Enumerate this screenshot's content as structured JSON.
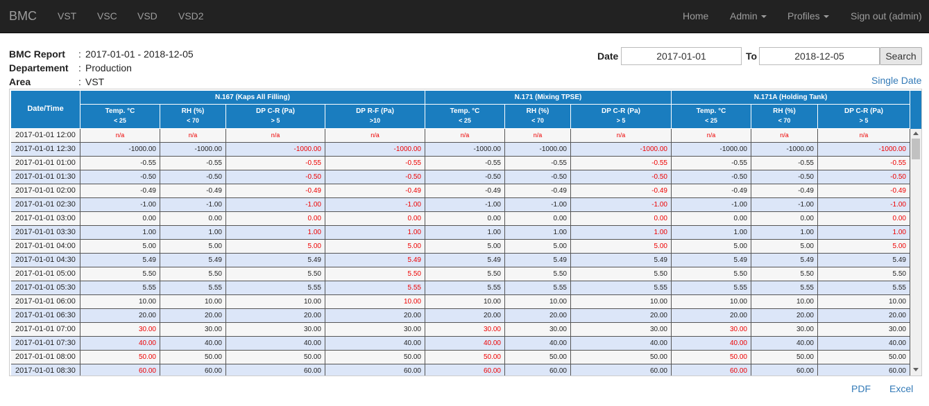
{
  "navbar": {
    "brand": "BMC",
    "left_items": [
      "VST",
      "VSC",
      "VSD",
      "VSD2"
    ],
    "right_items": [
      {
        "label": "Home"
      },
      {
        "label": "Admin"
      },
      {
        "label": "Profiles"
      },
      {
        "label": "Sign out (admin)"
      }
    ]
  },
  "report": {
    "title_label": "BMC Report",
    "title_value": "2017-01-01 - 2018-12-05",
    "dept_label": "Departement",
    "dept_value": "Production",
    "area_label": "Area",
    "area_value": "VST",
    "colon": ":"
  },
  "filter": {
    "date_label": "Date",
    "date_value": "2017-01-01",
    "to_label": "To",
    "to_value": "2018-12-05",
    "search_label": "Search",
    "single_date_label": "Single Date"
  },
  "table": {
    "datetime_header": "Date/Time",
    "groups": [
      {
        "label": "N.167 (Kaps All Filling)",
        "columns": [
          {
            "label": "Temp. °C",
            "limit": "< 25"
          },
          {
            "label": "RH (%)",
            "limit": "< 70"
          },
          {
            "label": "DP C-R (Pa)",
            "limit": "> 5"
          },
          {
            "label": "DP R-F (Pa)",
            "limit": ">10"
          }
        ]
      },
      {
        "label": "N.171 (Mixing TPSE)",
        "columns": [
          {
            "label": "Temp. °C",
            "limit": "< 25"
          },
          {
            "label": "RH (%)",
            "limit": "< 70"
          },
          {
            "label": "DP C-R (Pa)",
            "limit": "> 5"
          }
        ]
      },
      {
        "label": "N.171A (Holding Tank)",
        "columns": [
          {
            "label": "Temp. °C",
            "limit": "< 25"
          },
          {
            "label": "RH (%)",
            "limit": "< 70"
          },
          {
            "label": "DP C-R (Pa)",
            "limit": "> 5"
          }
        ]
      }
    ],
    "rows": [
      {
        "dt": "2017-01-01 12:00",
        "v": [
          "n/a",
          "n/a",
          "n/a",
          "n/a",
          "n/a",
          "n/a",
          "n/a",
          "n/a",
          "n/a",
          "n/a"
        ],
        "red": [
          1,
          1,
          1,
          1,
          1,
          1,
          1,
          1,
          1,
          1
        ]
      },
      {
        "dt": "2017-01-01 12:30",
        "v": [
          "-1000.00",
          "-1000.00",
          "-1000.00",
          "-1000.00",
          "-1000.00",
          "-1000.00",
          "-1000.00",
          "-1000.00",
          "-1000.00",
          "-1000.00"
        ],
        "red": [
          0,
          0,
          1,
          1,
          0,
          0,
          1,
          0,
          0,
          1
        ]
      },
      {
        "dt": "2017-01-01 01:00",
        "v": [
          "-0.55",
          "-0.55",
          "-0.55",
          "-0.55",
          "-0.55",
          "-0.55",
          "-0.55",
          "-0.55",
          "-0.55",
          "-0.55"
        ],
        "red": [
          0,
          0,
          1,
          1,
          0,
          0,
          1,
          0,
          0,
          1
        ]
      },
      {
        "dt": "2017-01-01 01:30",
        "v": [
          "-0.50",
          "-0.50",
          "-0.50",
          "-0.50",
          "-0.50",
          "-0.50",
          "-0.50",
          "-0.50",
          "-0.50",
          "-0.50"
        ],
        "red": [
          0,
          0,
          1,
          1,
          0,
          0,
          1,
          0,
          0,
          1
        ]
      },
      {
        "dt": "2017-01-01 02:00",
        "v": [
          "-0.49",
          "-0.49",
          "-0.49",
          "-0.49",
          "-0.49",
          "-0.49",
          "-0.49",
          "-0.49",
          "-0.49",
          "-0.49"
        ],
        "red": [
          0,
          0,
          1,
          1,
          0,
          0,
          1,
          0,
          0,
          1
        ]
      },
      {
        "dt": "2017-01-01 02:30",
        "v": [
          "-1.00",
          "-1.00",
          "-1.00",
          "-1.00",
          "-1.00",
          "-1.00",
          "-1.00",
          "-1.00",
          "-1.00",
          "-1.00"
        ],
        "red": [
          0,
          0,
          1,
          1,
          0,
          0,
          1,
          0,
          0,
          1
        ]
      },
      {
        "dt": "2017-01-01 03:00",
        "v": [
          "0.00",
          "0.00",
          "0.00",
          "0.00",
          "0.00",
          "0.00",
          "0.00",
          "0.00",
          "0.00",
          "0.00"
        ],
        "red": [
          0,
          0,
          1,
          1,
          0,
          0,
          1,
          0,
          0,
          1
        ]
      },
      {
        "dt": "2017-01-01 03:30",
        "v": [
          "1.00",
          "1.00",
          "1.00",
          "1.00",
          "1.00",
          "1.00",
          "1.00",
          "1.00",
          "1.00",
          "1.00"
        ],
        "red": [
          0,
          0,
          1,
          1,
          0,
          0,
          1,
          0,
          0,
          1
        ]
      },
      {
        "dt": "2017-01-01 04:00",
        "v": [
          "5.00",
          "5.00",
          "5.00",
          "5.00",
          "5.00",
          "5.00",
          "5.00",
          "5.00",
          "5.00",
          "5.00"
        ],
        "red": [
          0,
          0,
          1,
          1,
          0,
          0,
          1,
          0,
          0,
          1
        ]
      },
      {
        "dt": "2017-01-01 04:30",
        "v": [
          "5.49",
          "5.49",
          "5.49",
          "5.49",
          "5.49",
          "5.49",
          "5.49",
          "5.49",
          "5.49",
          "5.49"
        ],
        "red": [
          0,
          0,
          0,
          1,
          0,
          0,
          0,
          0,
          0,
          0
        ]
      },
      {
        "dt": "2017-01-01 05:00",
        "v": [
          "5.50",
          "5.50",
          "5.50",
          "5.50",
          "5.50",
          "5.50",
          "5.50",
          "5.50",
          "5.50",
          "5.50"
        ],
        "red": [
          0,
          0,
          0,
          1,
          0,
          0,
          0,
          0,
          0,
          0
        ]
      },
      {
        "dt": "2017-01-01 05:30",
        "v": [
          "5.55",
          "5.55",
          "5.55",
          "5.55",
          "5.55",
          "5.55",
          "5.55",
          "5.55",
          "5.55",
          "5.55"
        ],
        "red": [
          0,
          0,
          0,
          1,
          0,
          0,
          0,
          0,
          0,
          0
        ]
      },
      {
        "dt": "2017-01-01 06:00",
        "v": [
          "10.00",
          "10.00",
          "10.00",
          "10.00",
          "10.00",
          "10.00",
          "10.00",
          "10.00",
          "10.00",
          "10.00"
        ],
        "red": [
          0,
          0,
          0,
          1,
          0,
          0,
          0,
          0,
          0,
          0
        ]
      },
      {
        "dt": "2017-01-01 06:30",
        "v": [
          "20.00",
          "20.00",
          "20.00",
          "20.00",
          "20.00",
          "20.00",
          "20.00",
          "20.00",
          "20.00",
          "20.00"
        ],
        "red": [
          0,
          0,
          0,
          0,
          0,
          0,
          0,
          0,
          0,
          0
        ]
      },
      {
        "dt": "2017-01-01 07:00",
        "v": [
          "30.00",
          "30.00",
          "30.00",
          "30.00",
          "30.00",
          "30.00",
          "30.00",
          "30.00",
          "30.00",
          "30.00"
        ],
        "red": [
          1,
          0,
          0,
          0,
          1,
          0,
          0,
          1,
          0,
          0
        ]
      },
      {
        "dt": "2017-01-01 07:30",
        "v": [
          "40.00",
          "40.00",
          "40.00",
          "40.00",
          "40.00",
          "40.00",
          "40.00",
          "40.00",
          "40.00",
          "40.00"
        ],
        "red": [
          1,
          0,
          0,
          0,
          1,
          0,
          0,
          1,
          0,
          0
        ]
      },
      {
        "dt": "2017-01-01 08:00",
        "v": [
          "50.00",
          "50.00",
          "50.00",
          "50.00",
          "50.00",
          "50.00",
          "50.00",
          "50.00",
          "50.00",
          "50.00"
        ],
        "red": [
          1,
          0,
          0,
          0,
          1,
          0,
          0,
          1,
          0,
          0
        ]
      },
      {
        "dt": "2017-01-01 08:30",
        "v": [
          "60.00",
          "60.00",
          "60.00",
          "60.00",
          "60.00",
          "60.00",
          "60.00",
          "60.00",
          "60.00",
          "60.00"
        ],
        "red": [
          1,
          0,
          0,
          0,
          1,
          0,
          0,
          1,
          0,
          0
        ]
      }
    ]
  },
  "footer": {
    "pdf_label": "PDF",
    "excel_label": "Excel"
  },
  "colors": {
    "navbar_bg": "#222222",
    "header_blue": "#1a7dbf",
    "row_light": "#f6f6f6",
    "row_blue": "#dce6f8",
    "link": "#337ab7",
    "alert_red": "#ee0000"
  }
}
